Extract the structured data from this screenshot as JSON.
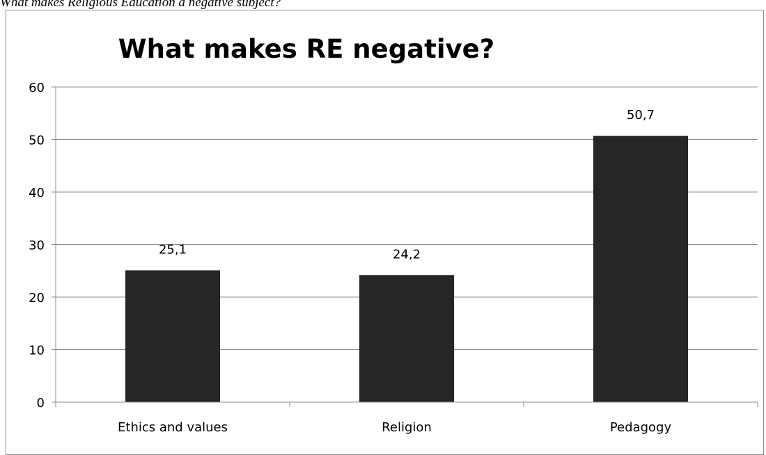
{
  "caption": "What makes Religious Education a negative subject?",
  "chart_data": {
    "type": "bar",
    "title": "What makes RE negative?",
    "categories": [
      "Ethics and values",
      "Religion",
      "Pedagogy"
    ],
    "values": [
      25.1,
      24.2,
      50.7
    ],
    "data_labels": [
      "25,1",
      "24,2",
      "50,7"
    ],
    "ylim": [
      0,
      60
    ],
    "yticks": [
      0,
      10,
      20,
      30,
      40,
      50,
      60
    ],
    "xlabel": "",
    "ylabel": "",
    "grid": true,
    "legend": false,
    "bar_color": "#262626",
    "gridline_color": "#8c8c8c"
  }
}
